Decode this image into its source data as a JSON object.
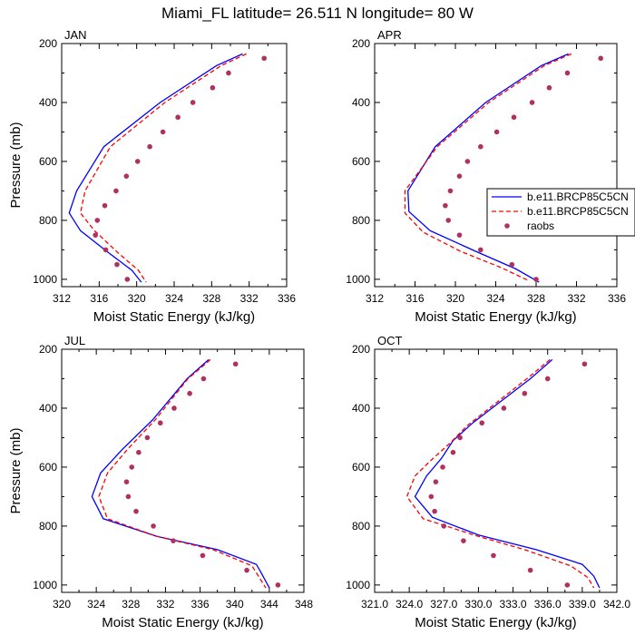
{
  "main_title": "Miami_FL  latitude= 26.511 N longitude= 80 W",
  "colors": {
    "model1": "#0000ff",
    "model2": "#ff0000",
    "raobs": "#b03060",
    "axis": "#000000"
  },
  "legend": {
    "entries": [
      "b.e11.BRCP85C5CN",
      "b.e11.BRCP85C5CN",
      "raobs"
    ],
    "panel": "APR",
    "placement": "right-middle"
  },
  "chart_data": [
    {
      "type": "line",
      "title": "JAN",
      "xlabel": "Moist Static Energy (kJ/kg)",
      "ylabel": "Pressure (mb)",
      "xlim": [
        312,
        336
      ],
      "ylim": [
        1025,
        200
      ],
      "xticks": [
        312,
        316,
        320,
        324,
        328,
        332,
        336
      ],
      "xtick_labels": [
        "312",
        "316",
        "320",
        "324",
        "328",
        "332",
        "336"
      ],
      "yticks": [
        200,
        400,
        600,
        800,
        1000
      ],
      "ytick_labels": [
        "200",
        "400",
        "600",
        "800",
        "1000"
      ],
      "series": [
        {
          "name": "b.e11.BRCP85C5CN",
          "style": "solid",
          "color": "#0000ff",
          "points": [
            [
              331.3,
              235
            ],
            [
              328.5,
              275
            ],
            [
              322.5,
              400
            ],
            [
              316.5,
              550
            ],
            [
              313.6,
              700
            ],
            [
              312.8,
              775
            ],
            [
              314.0,
              835
            ],
            [
              317.0,
              910
            ],
            [
              319.5,
              970
            ],
            [
              320.5,
              1010
            ]
          ]
        },
        {
          "name": "b.e11.BRCP85C5CN",
          "style": "dashed",
          "color": "#ff0000",
          "points": [
            [
              331.7,
              235
            ],
            [
              329.0,
              275
            ],
            [
              323.0,
              400
            ],
            [
              317.2,
              550
            ],
            [
              314.5,
              700
            ],
            [
              314.0,
              775
            ],
            [
              315.5,
              835
            ],
            [
              318.0,
              910
            ],
            [
              320.2,
              970
            ],
            [
              321.0,
              1010
            ]
          ]
        },
        {
          "name": "raobs",
          "style": "markers",
          "color": "#b03060",
          "points": [
            [
              333.6,
              250
            ],
            [
              329.8,
              300
            ],
            [
              328.1,
              350
            ],
            [
              326.0,
              400
            ],
            [
              324.4,
              450
            ],
            [
              322.8,
              500
            ],
            [
              321.4,
              550
            ],
            [
              320.1,
              600
            ],
            [
              318.9,
              650
            ],
            [
              317.8,
              700
            ],
            [
              316.6,
              750
            ],
            [
              315.8,
              800
            ],
            [
              315.6,
              850
            ],
            [
              316.7,
              900
            ],
            [
              317.9,
              950
            ],
            [
              319.0,
              1000
            ]
          ]
        }
      ]
    },
    {
      "type": "line",
      "title": "APR",
      "xlabel": "Moist Static Energy (kJ/kg)",
      "ylabel": "",
      "xlim": [
        312,
        336
      ],
      "ylim": [
        1025,
        200
      ],
      "xticks": [
        312,
        316,
        320,
        324,
        328,
        332,
        336
      ],
      "xtick_labels": [
        "312",
        "316",
        "320",
        "324",
        "328",
        "332",
        "336"
      ],
      "yticks": [
        200,
        400,
        600,
        800,
        1000
      ],
      "ytick_labels": [
        "200",
        "400",
        "600",
        "800",
        "1000"
      ],
      "series": [
        {
          "name": "b.e11.BRCP85C5CN",
          "style": "solid",
          "color": "#0000ff",
          "points": [
            [
              331.2,
              235
            ],
            [
              328.5,
              275
            ],
            [
              323.0,
              400
            ],
            [
              318.0,
              550
            ],
            [
              315.3,
              700
            ],
            [
              315.4,
              770
            ],
            [
              317.5,
              835
            ],
            [
              322.0,
              905
            ],
            [
              326.0,
              965
            ],
            [
              328.3,
              1010
            ]
          ]
        },
        {
          "name": "b.e11.BRCP85C5CN",
          "style": "dashed",
          "color": "#ff0000",
          "points": [
            [
              331.5,
              235
            ],
            [
              328.8,
              275
            ],
            [
              323.3,
              400
            ],
            [
              318.2,
              550
            ],
            [
              315.0,
              700
            ],
            [
              315.0,
              775
            ],
            [
              316.8,
              840
            ],
            [
              320.5,
              905
            ],
            [
              324.5,
              960
            ],
            [
              327.3,
              1005
            ]
          ]
        },
        {
          "name": "raobs",
          "style": "markers",
          "color": "#b03060",
          "points": [
            [
              334.4,
              250
            ],
            [
              331.1,
              300
            ],
            [
              329.3,
              350
            ],
            [
              327.6,
              400
            ],
            [
              325.8,
              450
            ],
            [
              324.1,
              500
            ],
            [
              322.5,
              550
            ],
            [
              321.2,
              600
            ],
            [
              320.4,
              650
            ],
            [
              319.5,
              700
            ],
            [
              319.0,
              750
            ],
            [
              319.3,
              800
            ],
            [
              320.4,
              850
            ],
            [
              322.5,
              900
            ],
            [
              325.6,
              950
            ],
            [
              328.0,
              1000
            ]
          ]
        }
      ]
    },
    {
      "type": "line",
      "title": "JUL",
      "xlabel": "Moist Static Energy (kJ/kg)",
      "ylabel": "Pressure (mb)",
      "xlim": [
        320,
        348
      ],
      "ylim": [
        1025,
        200
      ],
      "xticks": [
        320,
        324,
        328,
        332,
        336,
        340,
        344,
        348
      ],
      "xtick_labels": [
        "320",
        "324",
        "328",
        "332",
        "336",
        "340",
        "344",
        "348"
      ],
      "yticks": [
        200,
        400,
        600,
        800,
        1000
      ],
      "ytick_labels": [
        "200",
        "400",
        "600",
        "800",
        "1000"
      ],
      "series": [
        {
          "name": "b.e11.BRCP85C5CN",
          "style": "solid",
          "color": "#0000ff",
          "points": [
            [
              337.0,
              235
            ],
            [
              334.5,
              300
            ],
            [
              330.5,
              440
            ],
            [
              327.0,
              540
            ],
            [
              324.5,
              620
            ],
            [
              323.5,
              700
            ],
            [
              324.8,
              775
            ],
            [
              331.0,
              835
            ],
            [
              338.0,
              880
            ],
            [
              342.5,
              930
            ],
            [
              343.0,
              955
            ],
            [
              344.0,
              1010
            ]
          ]
        },
        {
          "name": "b.e11.BRCP85C5CN",
          "style": "dashed",
          "color": "#ff0000",
          "points": [
            [
              337.2,
              235
            ],
            [
              334.6,
              300
            ],
            [
              330.8,
              440
            ],
            [
              327.6,
              540
            ],
            [
              325.3,
              620
            ],
            [
              324.3,
              700
            ],
            [
              325.3,
              775
            ],
            [
              331.0,
              835
            ],
            [
              337.5,
              880
            ],
            [
              342.0,
              935
            ],
            [
              343.6,
              1010
            ]
          ]
        },
        {
          "name": "raobs",
          "style": "markers",
          "color": "#b03060",
          "points": [
            [
              340.1,
              250
            ],
            [
              336.4,
              300
            ],
            [
              334.8,
              350
            ],
            [
              333.0,
              400
            ],
            [
              331.4,
              450
            ],
            [
              329.9,
              500
            ],
            [
              328.9,
              550
            ],
            [
              328.1,
              600
            ],
            [
              327.5,
              650
            ],
            [
              327.7,
              700
            ],
            [
              328.6,
              750
            ],
            [
              330.6,
              800
            ],
            [
              332.9,
              850
            ],
            [
              336.3,
              900
            ],
            [
              341.4,
              950
            ],
            [
              345.0,
              1000
            ]
          ]
        }
      ]
    },
    {
      "type": "line",
      "title": "OCT",
      "xlabel": "Moist Static Energy (kJ/kg)",
      "ylabel": "",
      "xlim": [
        321,
        342
      ],
      "ylim": [
        1025,
        200
      ],
      "xticks": [
        321,
        324,
        327,
        330,
        333,
        336,
        339,
        342
      ],
      "xtick_labels": [
        "321.0",
        "324.0",
        "327.0",
        "330.0",
        "333.0",
        "336.0",
        "339.0",
        "342.0"
      ],
      "yticks": [
        200,
        400,
        600,
        800,
        1000
      ],
      "ytick_labels": [
        "200",
        "400",
        "600",
        "800",
        "1000"
      ],
      "series": [
        {
          "name": "b.e11.BRCP85C5CN",
          "style": "solid",
          "color": "#0000ff",
          "points": [
            [
              336.4,
              235
            ],
            [
              334.5,
              300
            ],
            [
              329.5,
              450
            ],
            [
              327.8,
              510
            ],
            [
              326.8,
              570
            ],
            [
              325.5,
              630
            ],
            [
              324.5,
              700
            ],
            [
              326.0,
              770
            ],
            [
              330.0,
              830
            ],
            [
              335.0,
              880
            ],
            [
              339.0,
              930
            ],
            [
              340.0,
              970
            ],
            [
              340.5,
              1010
            ]
          ]
        },
        {
          "name": "b.e11.BRCP85C5CN",
          "style": "dashed",
          "color": "#ff0000",
          "points": [
            [
              336.2,
              235
            ],
            [
              334.2,
              300
            ],
            [
              329.0,
              460
            ],
            [
              327.5,
              520
            ],
            [
              325.8,
              580
            ],
            [
              324.5,
              630
            ],
            [
              323.8,
              700
            ],
            [
              325.2,
              775
            ],
            [
              330.0,
              835
            ],
            [
              334.0,
              880
            ],
            [
              338.0,
              935
            ],
            [
              339.5,
              975
            ],
            [
              340.0,
              1010
            ]
          ]
        },
        {
          "name": "raobs",
          "style": "markers",
          "color": "#b03060",
          "points": [
            [
              339.2,
              250
            ],
            [
              336.0,
              300
            ],
            [
              334.0,
              350
            ],
            [
              332.2,
              400
            ],
            [
              330.3,
              450
            ],
            [
              328.4,
              500
            ],
            [
              327.8,
              550
            ],
            [
              326.9,
              600
            ],
            [
              326.3,
              650
            ],
            [
              325.9,
              700
            ],
            [
              326.2,
              750
            ],
            [
              327.0,
              800
            ],
            [
              328.7,
              850
            ],
            [
              331.3,
              900
            ],
            [
              334.5,
              950
            ],
            [
              337.7,
              1000
            ]
          ]
        }
      ]
    }
  ]
}
